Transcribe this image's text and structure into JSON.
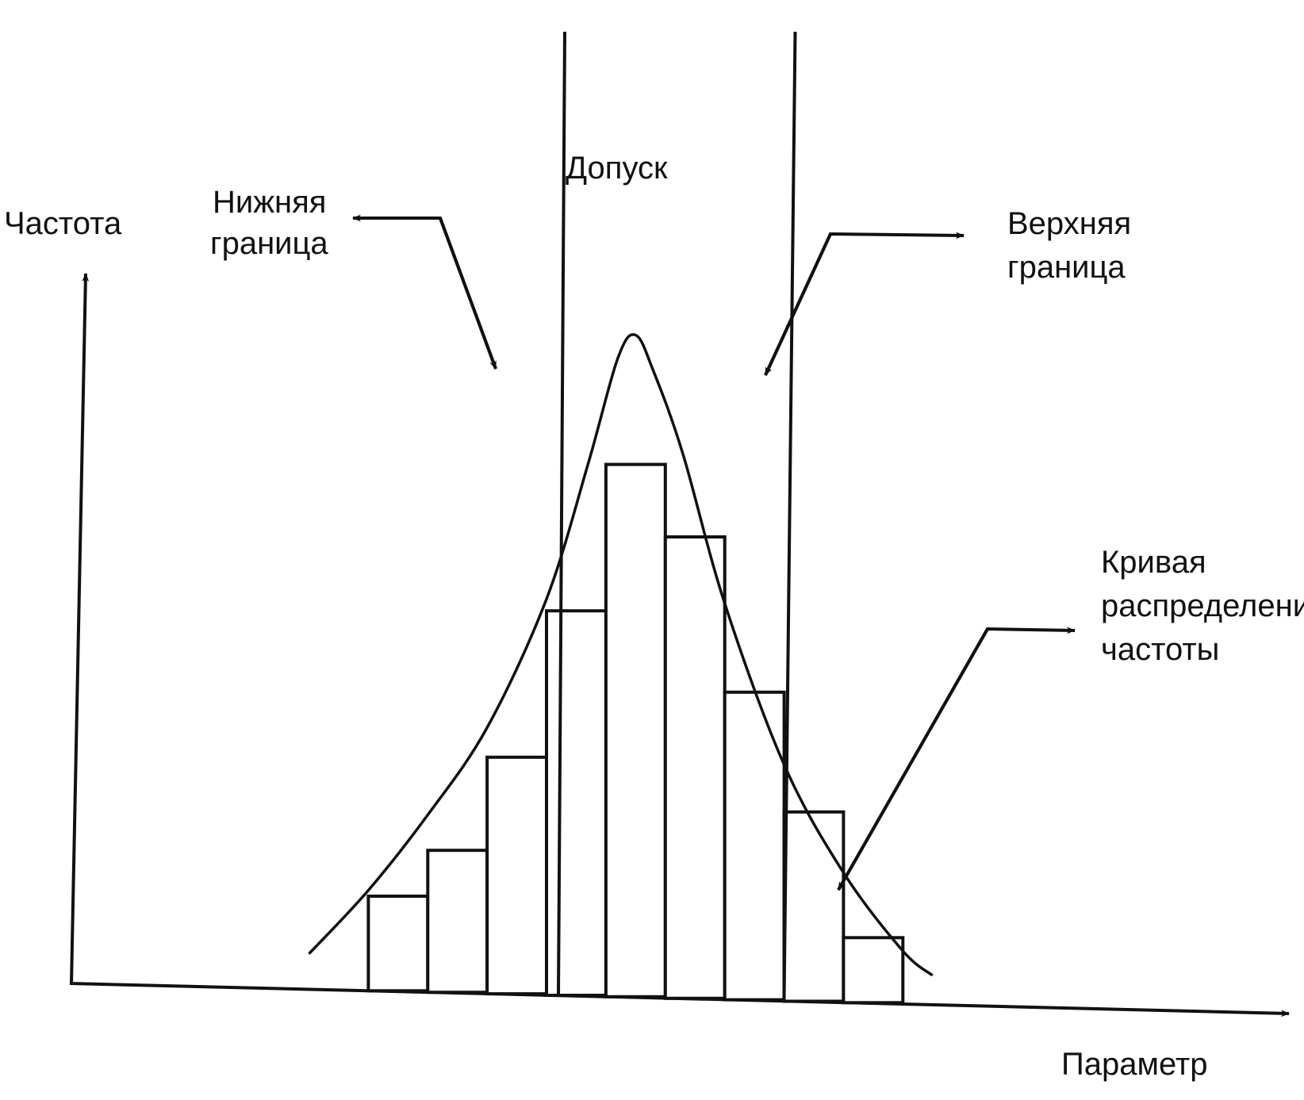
{
  "chart_data": {
    "type": "bar",
    "values": [
      1.6,
      2.4,
      4.0,
      6.5,
      9.0,
      7.8,
      5.2,
      3.2,
      1.1
    ],
    "bins": [
      [
        -4.5,
        -3.5
      ],
      [
        -3.5,
        -2.5
      ],
      [
        -2.5,
        -1.5
      ],
      [
        -1.5,
        -0.5
      ],
      [
        -0.5,
        0.5
      ],
      [
        0.5,
        1.5
      ],
      [
        1.5,
        2.5
      ],
      [
        2.5,
        3.5
      ],
      [
        3.5,
        4.5
      ]
    ],
    "xlim": [
      -9.5,
      11
    ],
    "ylim": [
      0,
      12
    ],
    "tolerance": {
      "lower": -1.3,
      "upper": 2.5
    },
    "curve": {
      "x": [
        -5.5,
        -4.5,
        -3.5,
        -2.5,
        -1.5,
        -0.8,
        -0.3,
        0.0,
        0.3,
        0.8,
        1.5,
        2.5,
        3.5,
        4.5,
        5.0
      ],
      "y": [
        0.6,
        1.7,
        3.0,
        4.5,
        6.7,
        9.0,
        10.8,
        11.2,
        10.6,
        9.2,
        6.7,
        4.0,
        2.2,
        0.9,
        0.5
      ]
    },
    "labels": {
      "ylabel": "Частота",
      "xlabel": "Параметр",
      "tolerance": "Допуск",
      "lower_line1": "Нижняя",
      "lower_line2": "граница",
      "upper_line1": "Верхняя",
      "upper_line2": "граница",
      "curve_line1": "Кривая",
      "curve_line2": "распределения",
      "curve_line3": "частоты"
    }
  }
}
